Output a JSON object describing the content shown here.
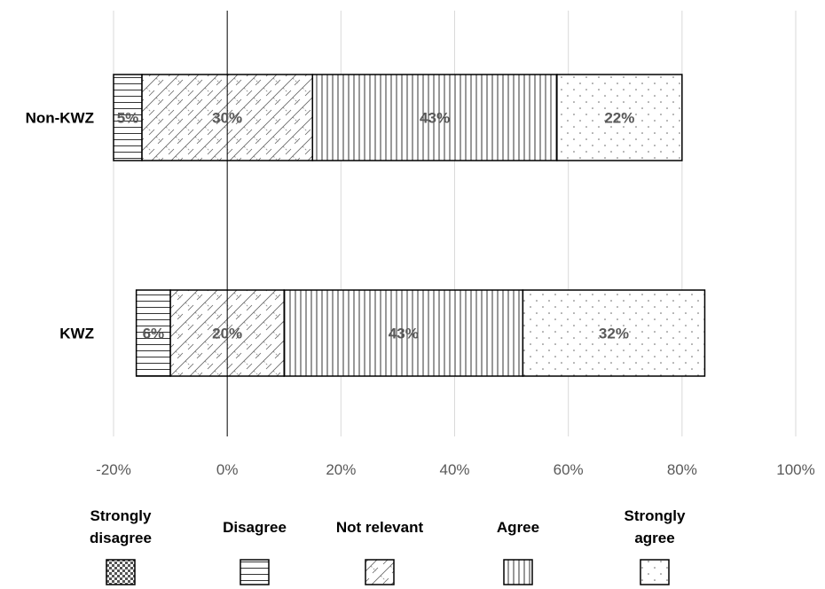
{
  "chart_data": {
    "type": "bar",
    "orientation": "horizontal",
    "stacked": true,
    "categories": [
      "Non-KWZ",
      "KWZ"
    ],
    "series": [
      {
        "name": "Strongly disagree",
        "pattern": "checker",
        "values": [
          0,
          0
        ]
      },
      {
        "name": "Disagree",
        "pattern": "horizontal-lines",
        "values": [
          5,
          6
        ]
      },
      {
        "name": "Not relevant",
        "pattern": "diagonal-weave",
        "values": [
          30,
          20
        ]
      },
      {
        "name": "Agree",
        "pattern": "vertical-lines",
        "values": [
          43,
          43
        ]
      },
      {
        "name": "Strongly agree",
        "pattern": "dots",
        "values": [
          22,
          32
        ]
      }
    ],
    "segments": [
      [
        {
          "series": "Disagree",
          "from": -20,
          "to": -15,
          "label": "5%"
        },
        {
          "series": "Not relevant",
          "from": -15,
          "to": 15,
          "label": "30%"
        },
        {
          "series": "Agree",
          "from": 15,
          "to": 58,
          "label": "43%"
        },
        {
          "series": "Strongly agree",
          "from": 58,
          "to": 80,
          "label": "22%"
        }
      ],
      [
        {
          "series": "Disagree",
          "from": -16,
          "to": -10,
          "label": "6%"
        },
        {
          "series": "Not relevant",
          "from": -10,
          "to": 10,
          "label": "20%"
        },
        {
          "series": "Agree",
          "from": 10,
          "to": 52,
          "label": "43%"
        },
        {
          "series": "Strongly agree",
          "from": 52,
          "to": 84,
          "label": "32%"
        }
      ]
    ],
    "xlim": [
      -20,
      100
    ],
    "xticks": [
      -20,
      0,
      20,
      40,
      60,
      80,
      100
    ],
    "xtick_labels": [
      "-20%",
      "0%",
      "20%",
      "40%",
      "60%",
      "80%",
      "100%"
    ],
    "title": "",
    "xlabel": "",
    "ylabel": "",
    "grid": true,
    "legend_position": "bottom",
    "legend": [
      {
        "lines": [
          "Strongly",
          "disagree"
        ],
        "pattern": "checker"
      },
      {
        "lines": [
          "Disagree"
        ],
        "pattern": "horizontal-lines"
      },
      {
        "lines": [
          "Not relevant"
        ],
        "pattern": "diagonal-weave"
      },
      {
        "lines": [
          "Agree"
        ],
        "pattern": "vertical-lines"
      },
      {
        "lines": [
          "Strongly",
          "agree"
        ],
        "pattern": "dots"
      }
    ]
  }
}
